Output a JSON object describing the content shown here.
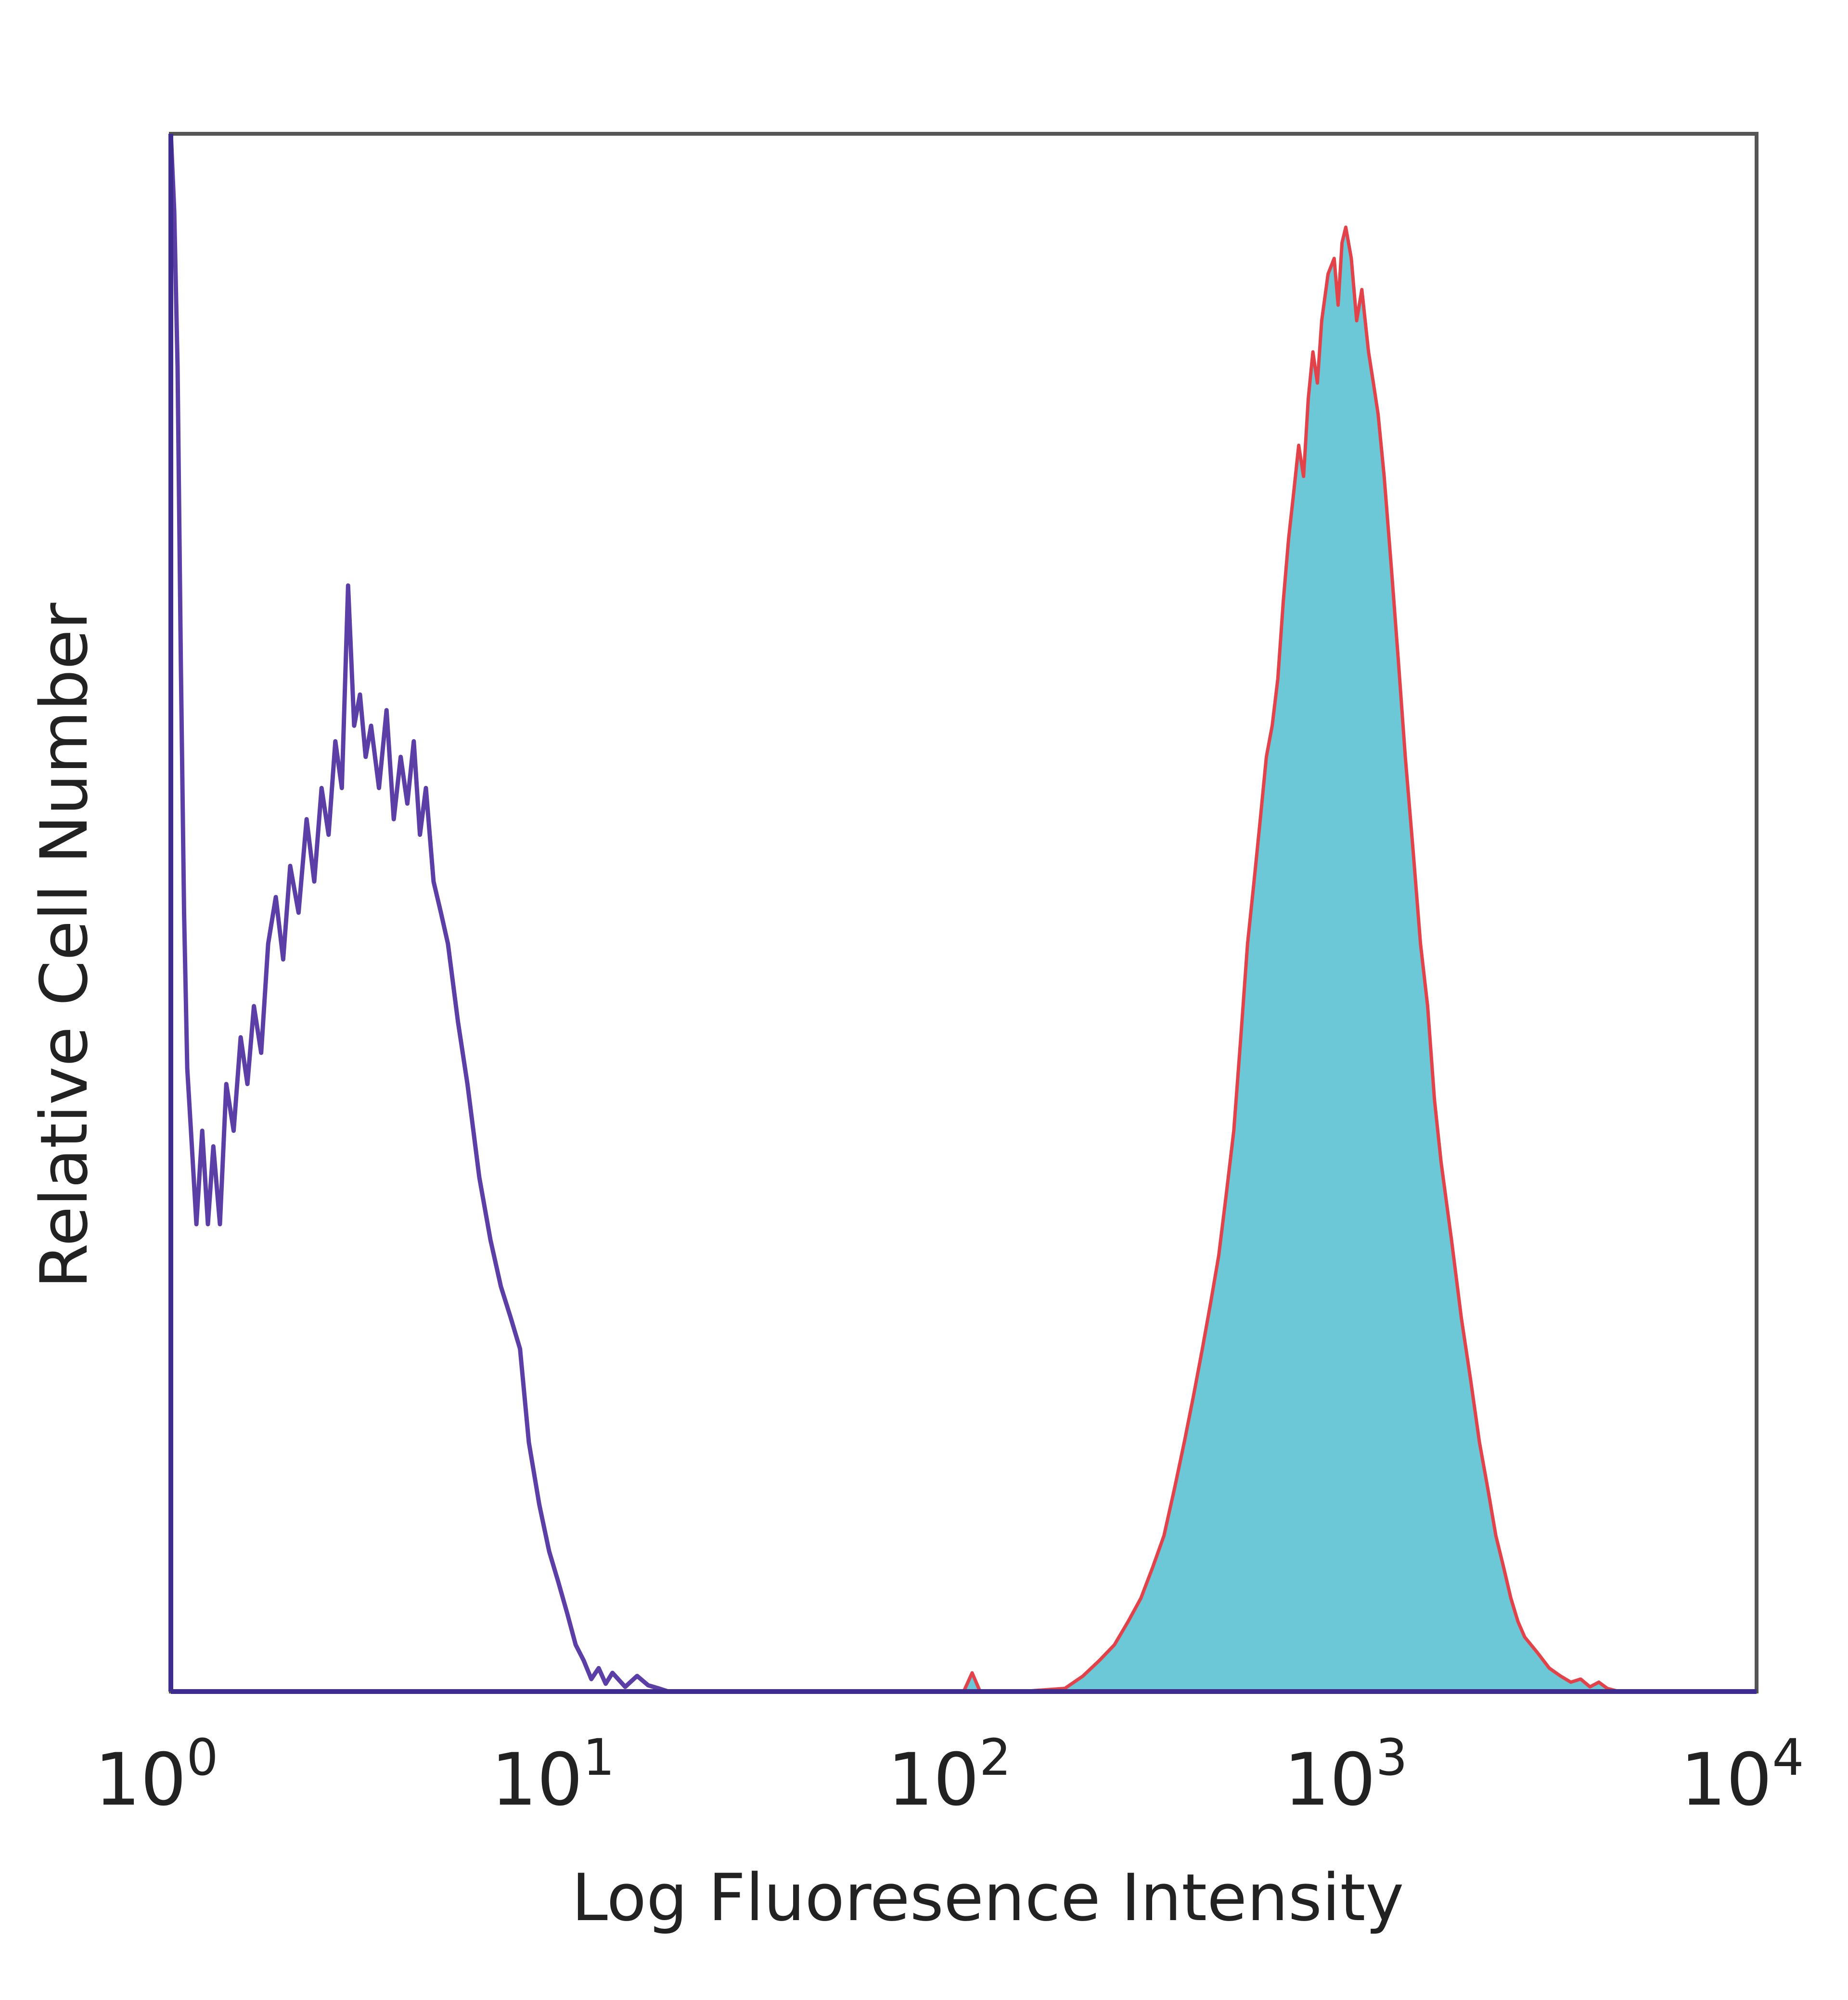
{
  "chart_data": {
    "type": "area",
    "xlabel": "Log Fluoresence Intensity",
    "ylabel": "Relative Cell Number",
    "x_scale": "log10",
    "xlim": [
      1,
      10000
    ],
    "ylim": [
      0,
      100
    ],
    "grid": false,
    "x_ticks": [
      {
        "base": "10",
        "exp": "0",
        "value": 1
      },
      {
        "base": "10",
        "exp": "1",
        "value": 10
      },
      {
        "base": "10",
        "exp": "2",
        "value": 100
      },
      {
        "base": "10",
        "exp": "3",
        "value": 1000
      },
      {
        "base": "10",
        "exp": "4",
        "value": 10000
      }
    ],
    "series": [
      {
        "style": "outline",
        "color": "#5B3FA6",
        "points": [
          [
            1.0,
            100
          ],
          [
            1.02,
            95
          ],
          [
            1.04,
            85
          ],
          [
            1.06,
            66
          ],
          [
            1.08,
            50
          ],
          [
            1.1,
            40
          ],
          [
            1.13,
            35
          ],
          [
            1.16,
            30
          ],
          [
            1.2,
            36
          ],
          [
            1.24,
            30
          ],
          [
            1.28,
            35
          ],
          [
            1.33,
            30
          ],
          [
            1.38,
            39
          ],
          [
            1.44,
            36
          ],
          [
            1.5,
            42
          ],
          [
            1.56,
            39
          ],
          [
            1.62,
            44
          ],
          [
            1.69,
            41
          ],
          [
            1.76,
            48
          ],
          [
            1.84,
            51
          ],
          [
            1.92,
            47
          ],
          [
            2.0,
            53
          ],
          [
            2.1,
            50
          ],
          [
            2.2,
            56
          ],
          [
            2.3,
            52
          ],
          [
            2.4,
            58
          ],
          [
            2.5,
            55
          ],
          [
            2.6,
            61
          ],
          [
            2.7,
            58
          ],
          [
            2.8,
            71
          ],
          [
            2.9,
            62
          ],
          [
            3.0,
            64
          ],
          [
            3.1,
            60
          ],
          [
            3.2,
            62
          ],
          [
            3.35,
            58
          ],
          [
            3.5,
            63
          ],
          [
            3.65,
            56
          ],
          [
            3.8,
            60
          ],
          [
            3.95,
            57
          ],
          [
            4.1,
            61
          ],
          [
            4.25,
            55
          ],
          [
            4.4,
            58
          ],
          [
            4.6,
            52
          ],
          [
            4.8,
            50
          ],
          [
            5.0,
            48
          ],
          [
            5.3,
            43
          ],
          [
            5.6,
            39
          ],
          [
            6.0,
            33
          ],
          [
            6.4,
            29
          ],
          [
            6.8,
            26
          ],
          [
            7.2,
            24
          ],
          [
            7.6,
            22
          ],
          [
            8.0,
            16
          ],
          [
            8.5,
            12
          ],
          [
            9.0,
            9
          ],
          [
            9.5,
            7
          ],
          [
            10.0,
            5
          ],
          [
            10.5,
            3
          ],
          [
            11.0,
            2
          ],
          [
            11.5,
            0.8
          ],
          [
            12.0,
            1.5
          ],
          [
            12.5,
            0.5
          ],
          [
            13.0,
            1.2
          ],
          [
            14.0,
            0.3
          ],
          [
            15.0,
            1.0
          ],
          [
            16.0,
            0.4
          ],
          [
            17.0,
            0.2
          ],
          [
            18.0,
            0
          ]
        ]
      },
      {
        "style": "filled",
        "color": "#6CC8D6",
        "outline_color": "#E2434A",
        "points": [
          [
            100,
            0
          ],
          [
            105,
            1.2
          ],
          [
            110,
            0
          ],
          [
            140,
            0
          ],
          [
            180,
            0.2
          ],
          [
            200,
            1.0
          ],
          [
            220,
            2.0
          ],
          [
            240,
            3.0
          ],
          [
            260,
            4.5
          ],
          [
            280,
            6.0
          ],
          [
            300,
            8.0
          ],
          [
            320,
            10.0
          ],
          [
            340,
            13.0
          ],
          [
            360,
            16.0
          ],
          [
            380,
            19.0
          ],
          [
            400,
            22.0
          ],
          [
            420,
            25.0
          ],
          [
            440,
            28.0
          ],
          [
            460,
            32.0
          ],
          [
            480,
            36.0
          ],
          [
            500,
            42.0
          ],
          [
            520,
            48.0
          ],
          [
            540,
            52.0
          ],
          [
            560,
            56.0
          ],
          [
            580,
            60.0
          ],
          [
            600,
            62.0
          ],
          [
            620,
            65.0
          ],
          [
            640,
            70.0
          ],
          [
            660,
            74.0
          ],
          [
            680,
            77.0
          ],
          [
            700,
            80.0
          ],
          [
            720,
            78.0
          ],
          [
            740,
            83.0
          ],
          [
            760,
            86.0
          ],
          [
            780,
            84.0
          ],
          [
            800,
            88.0
          ],
          [
            830,
            91.0
          ],
          [
            860,
            92.0
          ],
          [
            880,
            89.0
          ],
          [
            900,
            93.0
          ],
          [
            920,
            94.0
          ],
          [
            950,
            92.0
          ],
          [
            980,
            88.0
          ],
          [
            1010,
            90.0
          ],
          [
            1050,
            86.0
          ],
          [
            1080,
            84.0
          ],
          [
            1110,
            82.0
          ],
          [
            1150,
            78.0
          ],
          [
            1200,
            72.0
          ],
          [
            1250,
            66.0
          ],
          [
            1300,
            60.0
          ],
          [
            1360,
            54.0
          ],
          [
            1420,
            48.0
          ],
          [
            1480,
            44.0
          ],
          [
            1540,
            38.0
          ],
          [
            1600,
            34.0
          ],
          [
            1700,
            29.0
          ],
          [
            1800,
            24.0
          ],
          [
            1900,
            20.0
          ],
          [
            2000,
            16.0
          ],
          [
            2100,
            13.0
          ],
          [
            2200,
            10.0
          ],
          [
            2300,
            8.0
          ],
          [
            2400,
            6.0
          ],
          [
            2500,
            4.5
          ],
          [
            2600,
            3.5
          ],
          [
            2800,
            2.5
          ],
          [
            3000,
            1.5
          ],
          [
            3200,
            1.0
          ],
          [
            3400,
            0.6
          ],
          [
            3600,
            0.8
          ],
          [
            3800,
            0.3
          ],
          [
            4000,
            0.6
          ],
          [
            4200,
            0.2
          ],
          [
            4500,
            0
          ]
        ]
      }
    ]
  }
}
